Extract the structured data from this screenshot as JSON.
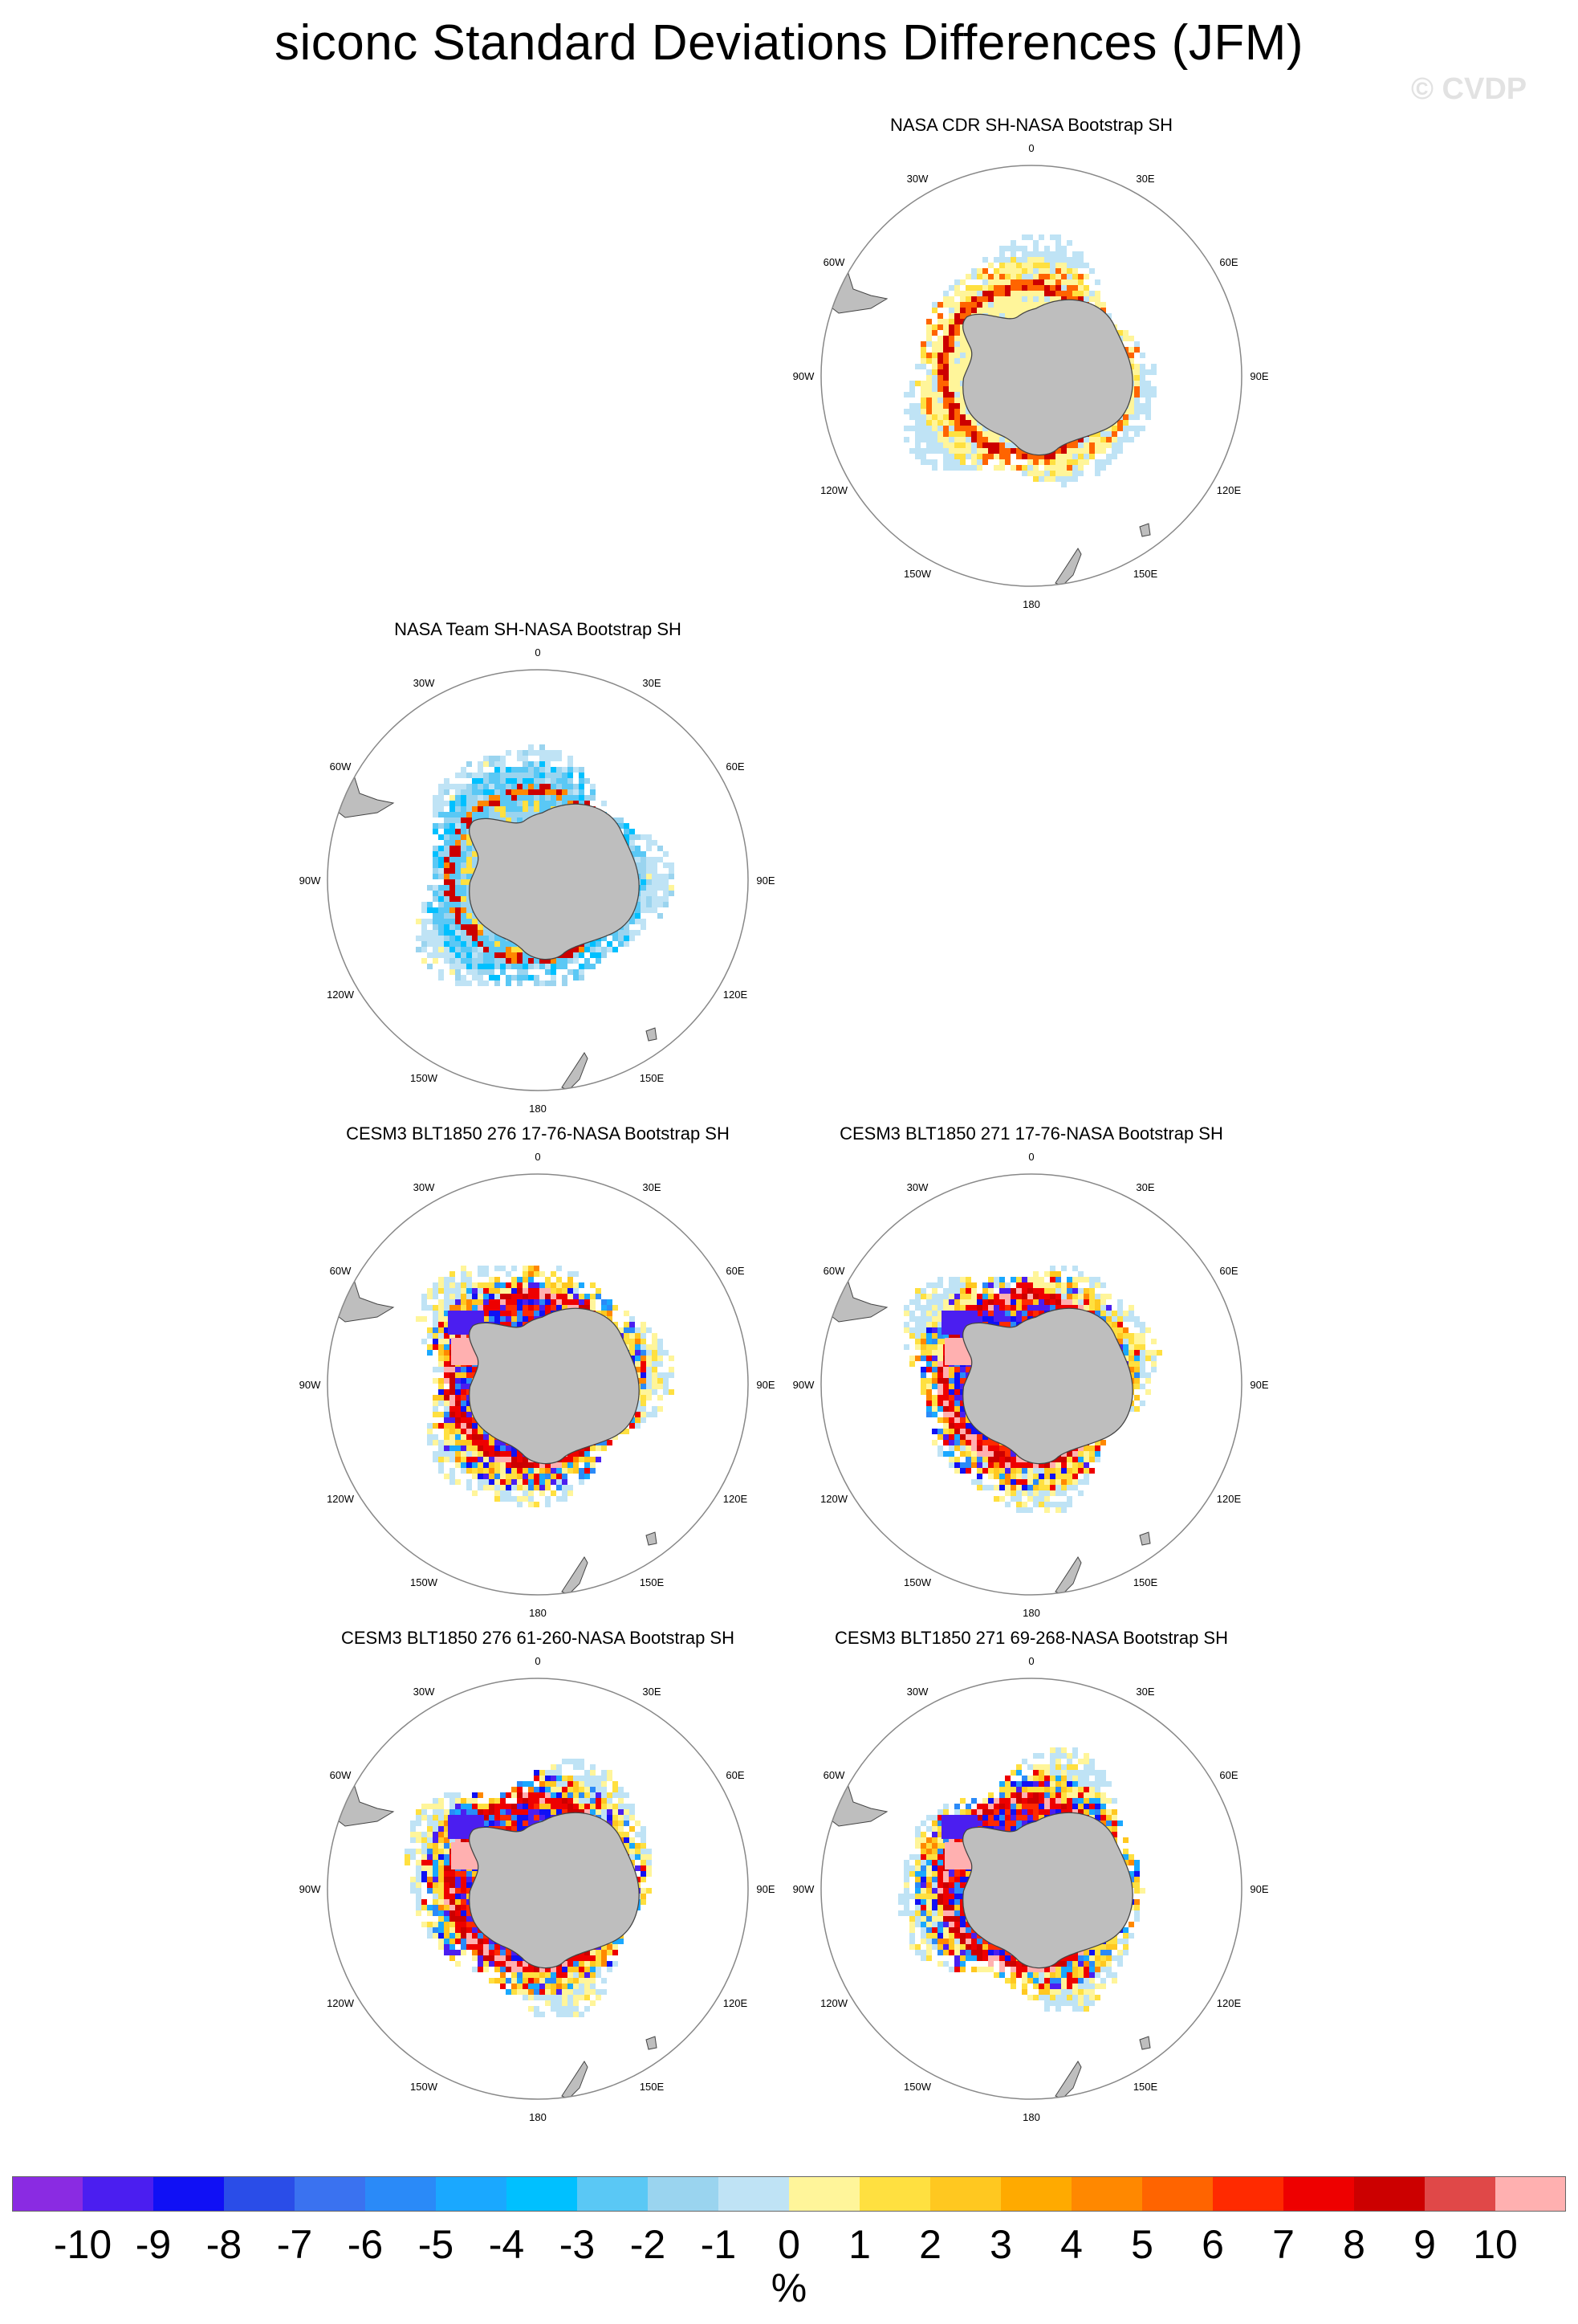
{
  "title": "siconc Standard Deviations Differences (JFM)",
  "watermark": "© CVDP",
  "longitude_labels": [
    "0",
    "30E",
    "60E",
    "90E",
    "120E",
    "150E",
    "180",
    "150W",
    "120W",
    "90W",
    "60W",
    "30W"
  ],
  "panels": [
    {
      "title": "NASA CDR SH-NASA Bootstrap SH",
      "pattern": "cdr"
    },
    {
      "title": "NASA Team SH-NASA Bootstrap SH",
      "pattern": "team"
    },
    {
      "title": "CESM3 BLT1850 276 17-76-NASA Bootstrap SH",
      "pattern": "model"
    },
    {
      "title": "CESM3 BLT1850 271 17-76-NASA Bootstrap SH",
      "pattern": "model"
    },
    {
      "title": "CESM3 BLT1850 276 61-260-NASA Bootstrap SH",
      "pattern": "model"
    },
    {
      "title": "CESM3 BLT1850 271 69-268-NASA Bootstrap SH",
      "pattern": "model"
    }
  ],
  "colorbar": {
    "unit": "%",
    "labels": [
      "-10",
      "-9",
      "-8",
      "-7",
      "-6",
      "-5",
      "-4",
      "-3",
      "-2",
      "-1",
      "0",
      "1",
      "2",
      "3",
      "4",
      "5",
      "6",
      "7",
      "8",
      "9",
      "10"
    ],
    "colors": [
      "#8a2be2",
      "#4b1ef0",
      "#1010f5",
      "#2a4de8",
      "#3a72f0",
      "#2a8af8",
      "#1aa8ff",
      "#00c0ff",
      "#5ac8f5",
      "#9ad4ef",
      "#bfe3f5",
      "#fff59a",
      "#ffe040",
      "#ffc820",
      "#ffaa00",
      "#ff8800",
      "#ff6400",
      "#ff2a00",
      "#ee0000",
      "#cc0000",
      "#e04848",
      "#ffb0b0"
    ]
  },
  "colors": {
    "land": "#bebebe",
    "neutral": "#bfe3f5",
    "circle": "#888888"
  }
}
